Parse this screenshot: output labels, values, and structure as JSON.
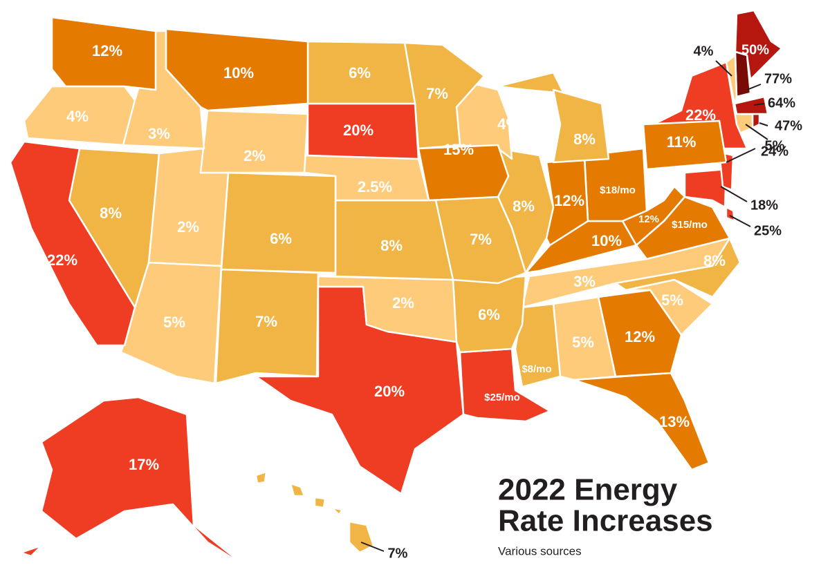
{
  "title": [
    "2022 Energy",
    "Rate Increases"
  ],
  "subtitle": "Various sources",
  "regions": [
    {
      "label": "12%",
      "color": "#e57a00"
    },
    {
      "label": "4%",
      "color": "#fdcb7a"
    },
    {
      "label": "22%",
      "color": "#ee3d23"
    },
    {
      "label": "3%",
      "color": "#fdcb7a"
    },
    {
      "label": "8%",
      "color": "#f0b545"
    },
    {
      "label": "10%",
      "color": "#e57a00"
    },
    {
      "label": "2%",
      "color": "#fdcb7a"
    },
    {
      "label": "2%",
      "color": "#fdcb7a"
    },
    {
      "label": "5%",
      "color": "#fdcb7a"
    },
    {
      "label": "6%",
      "color": "#f0b545"
    },
    {
      "label": "7%",
      "color": "#f0b545"
    },
    {
      "label": "6%",
      "color": "#f0b545"
    },
    {
      "label": "20%",
      "color": "#ee3d23"
    },
    {
      "label": "2.5%",
      "color": "#fdcb7a"
    },
    {
      "label": "8%",
      "color": "#f0b545"
    },
    {
      "label": "2%",
      "color": "#fdcb7a"
    },
    {
      "label": "20%",
      "color": "#ee3d23"
    },
    {
      "label": "7%",
      "color": "#f0b545"
    },
    {
      "label": "15%",
      "color": "#e57a00"
    },
    {
      "label": "7%",
      "color": "#f0b545"
    },
    {
      "label": "6%",
      "color": "#f0b545"
    },
    {
      "label": "$25/mo",
      "color": "#ee3d23"
    },
    {
      "label": "4%",
      "color": "#fdcb7a"
    },
    {
      "label": "8%",
      "color": "#f0b545"
    },
    {
      "label": "8%",
      "color": "#f0b545"
    },
    {
      "label": "12%",
      "color": "#e57a00"
    },
    {
      "label": "$18/mo",
      "color": "#e57a00"
    },
    {
      "label": "10%",
      "color": "#e57a00"
    },
    {
      "label": "3%",
      "color": "#fdcb7a"
    },
    {
      "label": "$8/mo",
      "color": "#f0b545"
    },
    {
      "label": "5%",
      "color": "#fdcb7a"
    },
    {
      "label": "12%",
      "color": "#e57a00"
    },
    {
      "label": "13%",
      "color": "#e57a00"
    },
    {
      "label": "5%",
      "color": "#fdcb7a"
    },
    {
      "label": "8%",
      "color": "#f0b545"
    },
    {
      "label": "$15/mo",
      "color": "#e57a00"
    },
    {
      "label": "12%",
      "color": "#e57a00"
    },
    {
      "label": "11%",
      "color": "#e57a00"
    },
    {
      "label": "22%",
      "color": "#ee3d23"
    },
    {
      "label": "24%",
      "color": "#ee3d23"
    },
    {
      "label": "18%",
      "color": "#ee3d23"
    },
    {
      "label": "25%",
      "color": "#ee3d23"
    },
    {
      "label": "4%",
      "color": "#fdcb7a"
    },
    {
      "label": "77%",
      "color": "#7a0a05"
    },
    {
      "label": "50%",
      "color": "#b5160e"
    },
    {
      "label": "64%",
      "color": "#b5160e"
    },
    {
      "label": "5%",
      "color": "#fdcb7a"
    },
    {
      "label": "47%",
      "color": "#b5160e"
    },
    {
      "label": "17%",
      "color": "#ee3d23"
    },
    {
      "label": "7%",
      "color": "#f0b545"
    }
  ]
}
